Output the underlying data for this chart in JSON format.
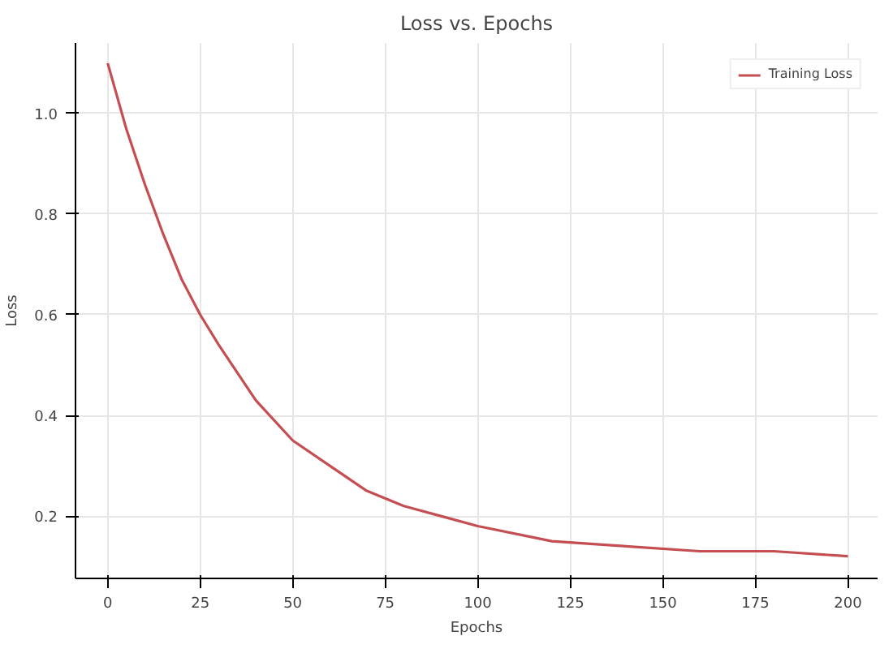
{
  "chart_data": {
    "type": "line",
    "title": "Loss vs. Epochs",
    "xlabel": "Epochs",
    "ylabel": "Loss",
    "x": [
      0,
      5,
      10,
      15,
      20,
      25,
      30,
      40,
      50,
      60,
      70,
      80,
      90,
      100,
      120,
      140,
      160,
      180,
      200
    ],
    "series": [
      {
        "name": "Training Loss",
        "color": "#c44e52",
        "values": [
          1.1,
          0.97,
          0.86,
          0.76,
          0.67,
          0.6,
          0.54,
          0.43,
          0.35,
          0.3,
          0.25,
          0.22,
          0.2,
          0.18,
          0.15,
          0.14,
          0.13,
          0.13,
          0.12
        ]
      }
    ],
    "xlim": [
      -8.7,
      208
    ],
    "ylim": [
      0.076,
      1.14
    ],
    "xticks": [
      0,
      25,
      50,
      75,
      100,
      125,
      150,
      175,
      200
    ],
    "yticks": [
      {
        "value": 0.2,
        "label": "0.2"
      },
      {
        "value": 0.4,
        "label": "0.4"
      },
      {
        "value": 0.6,
        "label": "0.6"
      },
      {
        "value": 0.8,
        "label": "0.8"
      },
      {
        "value": 1.0,
        "label": "1.0"
      }
    ],
    "grid": true,
    "legend": "top right",
    "line_style": "solid"
  }
}
